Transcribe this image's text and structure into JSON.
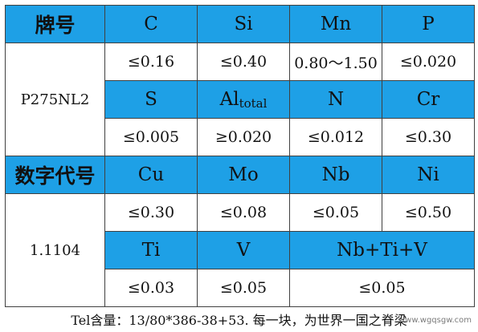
{
  "table": {
    "header_grade": "牌号",
    "header_number": "数字代号",
    "grade": "P275NL2",
    "number": "1.1104",
    "row1": [
      {
        "el": "C",
        "val": "≤0.16"
      },
      {
        "el": "Si",
        "val": "≤0.40"
      },
      {
        "el": "Mn",
        "val": "0.80～1.50"
      },
      {
        "el": "P",
        "val": "≤0.020"
      }
    ],
    "row2": [
      {
        "el": "S",
        "val": "≤0.005"
      },
      {
        "el": "Al",
        "el_sub": "total",
        "val": "≥0.020"
      },
      {
        "el": "N",
        "val": "≤0.012"
      },
      {
        "el": "Cr",
        "val": "≤0.30"
      }
    ],
    "row3": [
      {
        "el": "Cu",
        "val": "≤0.30"
      },
      {
        "el": "Mo",
        "val": "≤0.08"
      },
      {
        "el": "Nb",
        "val": "≤0.05"
      },
      {
        "el": "Ni",
        "val": "≤0.50"
      }
    ],
    "row4": [
      {
        "el": "Ti",
        "val": "≤0.03"
      },
      {
        "el": "V",
        "val": "≤0.05"
      },
      {
        "el": "Nb+Ti+V",
        "val": "≤0.05"
      }
    ]
  },
  "footer": "Tel含量：13/80*386-38+53. 每一块，为世界一国之脊梁",
  "watermark": "www.wgqsgw.com",
  "colors": {
    "header_bg": "#1ea0e6",
    "border": "#404040"
  }
}
